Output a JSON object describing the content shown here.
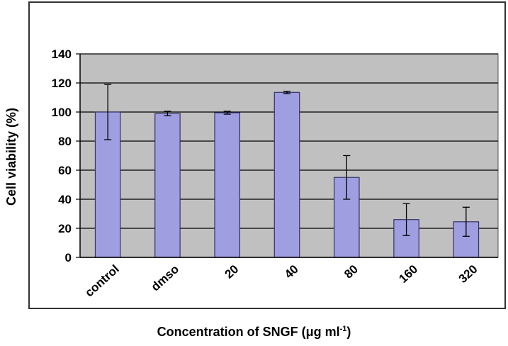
{
  "chart_data": {
    "type": "bar",
    "categories": [
      "control",
      "dmso",
      "20",
      "40",
      "80",
      "160",
      "320"
    ],
    "values": [
      100,
      99,
      99.5,
      113.5,
      55,
      26,
      24.5
    ],
    "errors": [
      19,
      1.5,
      1,
      0.8,
      15,
      11,
      10
    ],
    "ylabel": "Cell viability (%)",
    "xlabel_main": "Concentration of SNGF (μg ml",
    "xlabel_sup": "-1",
    "xlabel_end": ")",
    "ylim": [
      0,
      140
    ],
    "yticks": [
      0,
      20,
      40,
      60,
      80,
      100,
      120,
      140
    ],
    "grid": true,
    "colors": {
      "bar_fill": "#9e9ee0",
      "bar_stroke": "#333366",
      "plot_bg": "#c0c0c0",
      "grid": "#000000"
    }
  }
}
